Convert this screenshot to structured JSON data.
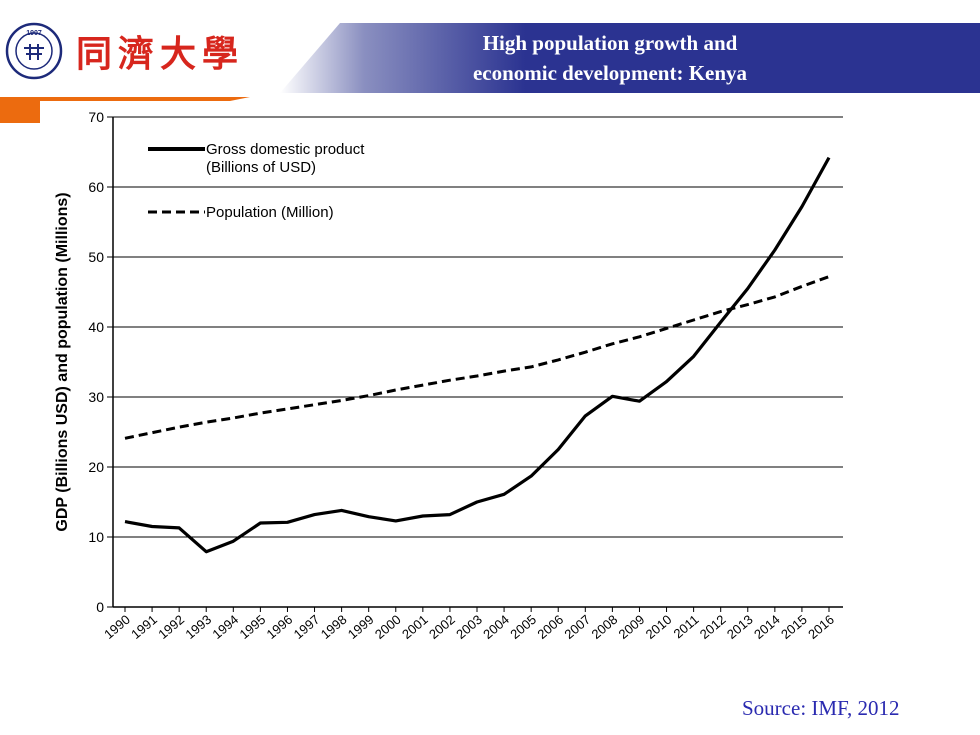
{
  "header": {
    "title_line_1": "High population growth and",
    "title_line_2": "economic development: Kenya",
    "university_name_cn": "同濟大學",
    "seal_text": "TONGJI UNIVERSITY",
    "seal_year": "1907"
  },
  "colors": {
    "banner": "#2b3391",
    "accent": "#ec6b0f",
    "logo_red": "#d7261d",
    "source_text": "#2a2ab0"
  },
  "chart_data": {
    "type": "line",
    "ylabel": "GDP (Billions USD) and population (Millions)",
    "xlabel": "",
    "ylim": [
      0,
      70
    ],
    "yticks": [
      0,
      10,
      20,
      30,
      40,
      50,
      60,
      70
    ],
    "grid": "horizontal",
    "legend_placement": "top-left",
    "x": [
      "1990",
      "1991",
      "1992",
      "1993",
      "1994",
      "1995",
      "1996",
      "1997",
      "1998",
      "1999",
      "2000",
      "2001",
      "2002",
      "2003",
      "2004",
      "2005",
      "2006",
      "2007",
      "2008",
      "2009",
      "2010",
      "2011",
      "2012",
      "2013",
      "2014",
      "2015",
      "2016"
    ],
    "series": [
      {
        "name": "Gross domestic product\n(Billions of USD)",
        "style": "solid",
        "values": [
          12.2,
          11.5,
          11.3,
          7.9,
          9.4,
          12.0,
          12.1,
          13.2,
          13.8,
          12.9,
          12.3,
          13.0,
          13.2,
          15.0,
          16.1,
          18.7,
          22.5,
          27.3,
          30.1,
          29.4,
          32.2,
          35.8,
          40.7,
          45.5,
          51.0,
          57.2,
          64.2
        ]
      },
      {
        "name": "Population (Million)",
        "style": "dashed",
        "values": [
          24.1,
          24.9,
          25.7,
          26.4,
          27.0,
          27.7,
          28.3,
          28.9,
          29.5,
          30.2,
          31.0,
          31.7,
          32.4,
          33.0,
          33.7,
          34.3,
          35.3,
          36.4,
          37.6,
          38.6,
          39.8,
          41.0,
          42.2,
          43.2,
          44.3,
          45.8,
          47.2
        ]
      }
    ]
  },
  "source": "Source: IMF, 2012"
}
